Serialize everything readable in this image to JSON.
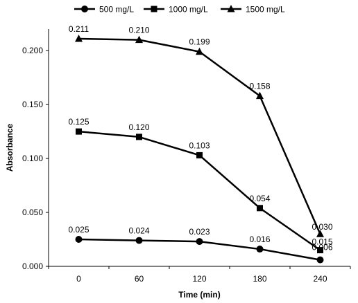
{
  "chart_data": {
    "type": "line",
    "xlabel": "Time (min)",
    "ylabel": "Absorbance",
    "x": [
      0,
      60,
      120,
      180,
      240
    ],
    "ylim": [
      0,
      0.22
    ],
    "yticks": [
      "0.000",
      "0.050",
      "0.100",
      "0.150",
      "0.200"
    ],
    "grid": false,
    "legend_position": "top",
    "series": [
      {
        "name": "500 mg/L",
        "marker": "circle",
        "color": "#000000",
        "values": [
          0.025,
          0.024,
          0.023,
          0.016,
          0.006
        ],
        "labels": [
          "0.025",
          "0.024",
          "0.023",
          "0.016",
          "0.006"
        ]
      },
      {
        "name": "1000 mg/L",
        "marker": "square",
        "color": "#000000",
        "values": [
          0.125,
          0.12,
          0.103,
          0.054,
          0.015
        ],
        "labels": [
          "0.125",
          "0.120",
          "0.103",
          "0.054",
          "0.015"
        ]
      },
      {
        "name": "1500 mg/L",
        "marker": "triangle",
        "color": "#000000",
        "values": [
          0.211,
          0.21,
          0.199,
          0.158,
          0.03
        ],
        "labels": [
          "0.211",
          "0.210",
          "0.199",
          "0.158",
          "0.030"
        ]
      }
    ]
  }
}
